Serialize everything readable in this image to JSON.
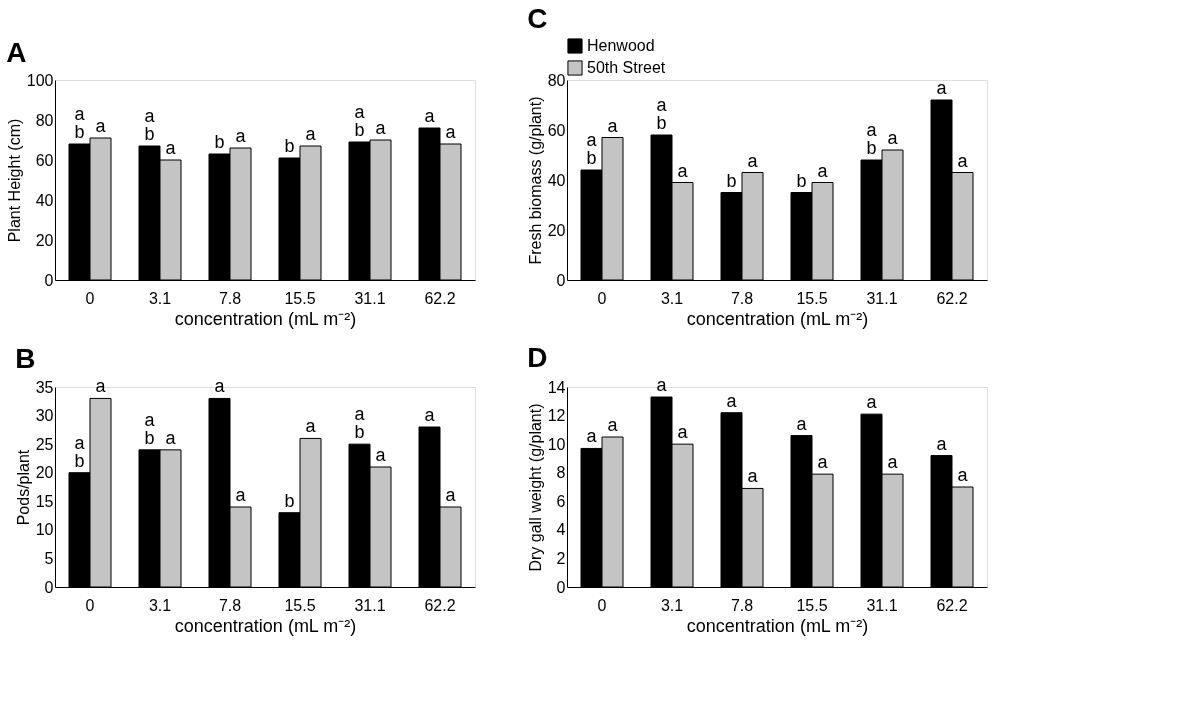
{
  "chart_data": [
    {
      "type": "bar",
      "title": "A",
      "xlabel": "concentration (mL m⁻²)",
      "ylabel": "Plant Height (cm)",
      "categories": [
        "0",
        "3.1",
        "7.8",
        "15.5",
        "31.1",
        "62.2"
      ],
      "ylim": [
        0,
        100
      ],
      "yticks": [
        0,
        20,
        40,
        60,
        80,
        100
      ],
      "grid": false,
      "legend": false,
      "series": [
        {
          "color": "#000000",
          "values": [
            68,
            67,
            63,
            61,
            69,
            76
          ],
          "value_labels": [
            "a\nb",
            "a\nb",
            "b",
            "b",
            "a\nb",
            "a"
          ]
        },
        {
          "color": "#c4c4c4",
          "values": [
            71,
            60,
            66,
            67,
            70,
            68
          ],
          "value_labels": [
            "a",
            "a",
            "a",
            "a",
            "a",
            "a"
          ]
        }
      ]
    },
    {
      "type": "bar",
      "title": "C",
      "xlabel": "concentration (mL m⁻²)",
      "ylabel": "Fresh biomass (g/plant)",
      "categories": [
        "0",
        "3.1",
        "7.8",
        "15.5",
        "31.1",
        "62.2"
      ],
      "ylim": [
        0,
        80
      ],
      "yticks": [
        0,
        20,
        40,
        60,
        80
      ],
      "grid": false,
      "legend": "top",
      "series": [
        {
          "name": "Henwood",
          "color": "#000000",
          "values": [
            44,
            58,
            35,
            35,
            48,
            72
          ],
          "value_labels": [
            "a\nb",
            "a\nb",
            "b",
            "b",
            "a\nb",
            "a"
          ]
        },
        {
          "name": "50th Street",
          "color": "#c4c4c4",
          "values": [
            57,
            39,
            43,
            39,
            52,
            43
          ],
          "value_labels": [
            "a",
            "a",
            "a",
            "a",
            "a",
            "a"
          ]
        }
      ]
    },
    {
      "type": "bar",
      "title": "B",
      "xlabel": "concentration (mL m⁻²)",
      "ylabel": "Pods/plant",
      "categories": [
        "0",
        "3.1",
        "7.8",
        "15.5",
        "31.1",
        "62.2"
      ],
      "ylim": [
        0,
        35
      ],
      "yticks": [
        0,
        5,
        10,
        15,
        20,
        25,
        30,
        35
      ],
      "grid": false,
      "legend": false,
      "series": [
        {
          "color": "#000000",
          "values": [
            20,
            24,
            33,
            13,
            25,
            28
          ],
          "value_labels": [
            "a\nb",
            "a\nb",
            "a",
            "b",
            "a\nb",
            "a"
          ]
        },
        {
          "color": "#c4c4c4",
          "values": [
            33,
            24,
            14,
            26,
            21,
            14
          ],
          "value_labels": [
            "a",
            "a",
            "a",
            "a",
            "a",
            "a"
          ]
        }
      ]
    },
    {
      "type": "bar",
      "title": "D",
      "xlabel": "concentration (mL m⁻²)",
      "ylabel": "Dry gall weight (g/plant)",
      "categories": [
        "0",
        "3.1",
        "7.8",
        "15.5",
        "31.1",
        "62.2"
      ],
      "ylim": [
        0,
        14
      ],
      "yticks": [
        0,
        2,
        4,
        6,
        8,
        10,
        12,
        14
      ],
      "grid": false,
      "legend": false,
      "series": [
        {
          "color": "#000000",
          "values": [
            9.7,
            13.3,
            12.2,
            10.6,
            12.1,
            9.2
          ],
          "value_labels": [
            "a",
            "a",
            "a",
            "a",
            "a",
            "a"
          ]
        },
        {
          "color": "#c4c4c4",
          "values": [
            10.5,
            10.0,
            6.9,
            7.9,
            7.9,
            7.0
          ],
          "value_labels": [
            "a",
            "a",
            "a",
            "a",
            "a",
            "a"
          ]
        }
      ]
    }
  ]
}
